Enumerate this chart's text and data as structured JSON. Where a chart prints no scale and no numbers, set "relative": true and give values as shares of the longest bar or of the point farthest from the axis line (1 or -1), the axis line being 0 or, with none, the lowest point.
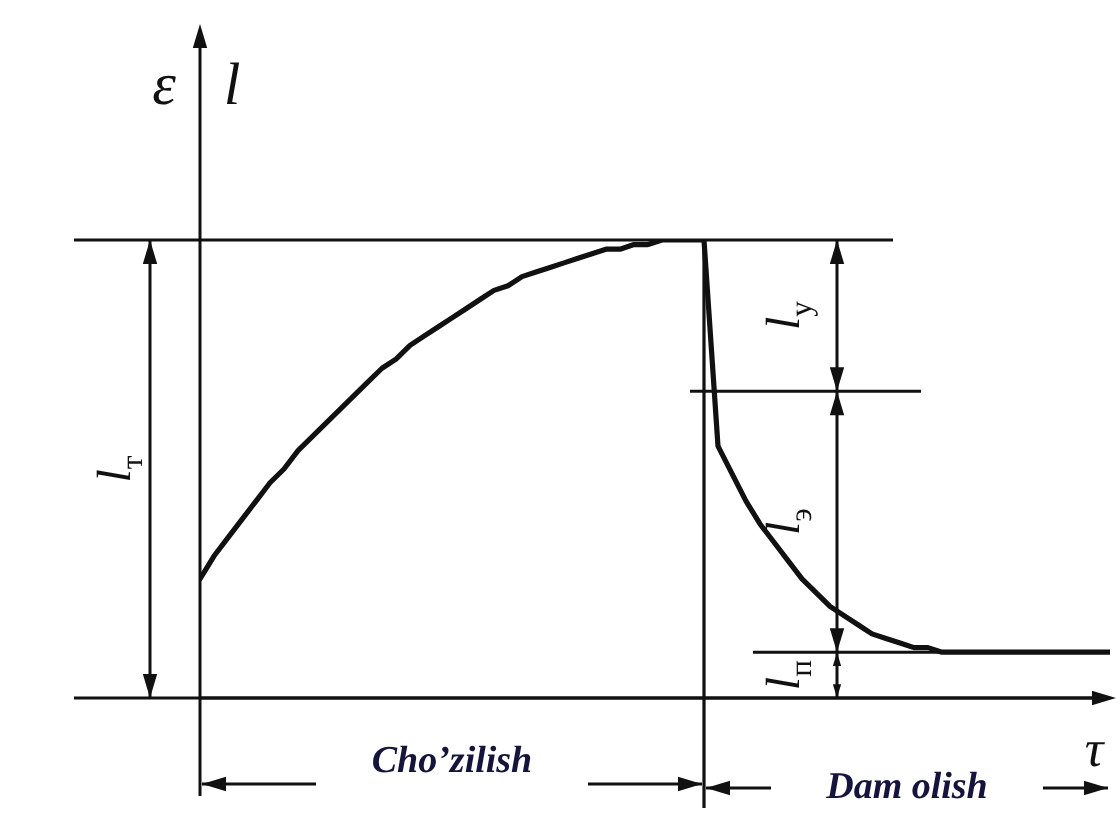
{
  "chart_data": {
    "type": "line",
    "xlabel": "τ",
    "ylabel": "ε l",
    "relative": true,
    "color": "#111111",
    "line_style": "solid",
    "categories": [
      null,
      null,
      null,
      null,
      null,
      null,
      null,
      null,
      null,
      null,
      null,
      null,
      null,
      null,
      null,
      null,
      null,
      null,
      null,
      null,
      null,
      null,
      null,
      null,
      null,
      null,
      null,
      null,
      null,
      null,
      null,
      null,
      null,
      null,
      null,
      null,
      null,
      null,
      null,
      null,
      null,
      null,
      null,
      null,
      null,
      null,
      null,
      null,
      null,
      null,
      null,
      null,
      null,
      null,
      null,
      null,
      null,
      null,
      null,
      null,
      null,
      null,
      null,
      null,
      null,
      null
    ],
    "values": [
      0.26,
      0.31,
      0.35,
      0.39,
      0.43,
      0.47,
      0.5,
      0.54,
      0.57,
      0.6,
      0.63,
      0.66,
      0.69,
      0.72,
      0.74,
      0.77,
      0.79,
      0.81,
      0.83,
      0.85,
      0.87,
      0.89,
      0.9,
      0.92,
      0.93,
      0.94,
      0.95,
      0.96,
      0.97,
      0.98,
      0.98,
      0.99,
      0.99,
      1.0,
      1.0,
      1.0,
      1.0,
      0.55,
      0.49,
      0.43,
      0.38,
      0.34,
      0.3,
      0.26,
      0.23,
      0.2,
      0.18,
      0.16,
      0.14,
      0.13,
      0.12,
      0.11,
      0.11,
      0.1,
      0.1,
      0.1,
      0.1,
      0.1,
      0.1,
      0.1,
      0.1,
      0.1,
      0.1,
      0.1,
      0.1,
      0.1
    ],
    "ref_lines": [
      {
        "axis": "y",
        "value": 1.0
      },
      {
        "axis": "y",
        "value": 0.67
      },
      {
        "axis": "y",
        "value": 0.1
      }
    ],
    "annotations": [
      "l$_{т}$",
      "l$_{у}$",
      "l$_{э}$",
      "l$_{п}$",
      "Cho’zilish",
      "Dam olish"
    ]
  }
}
